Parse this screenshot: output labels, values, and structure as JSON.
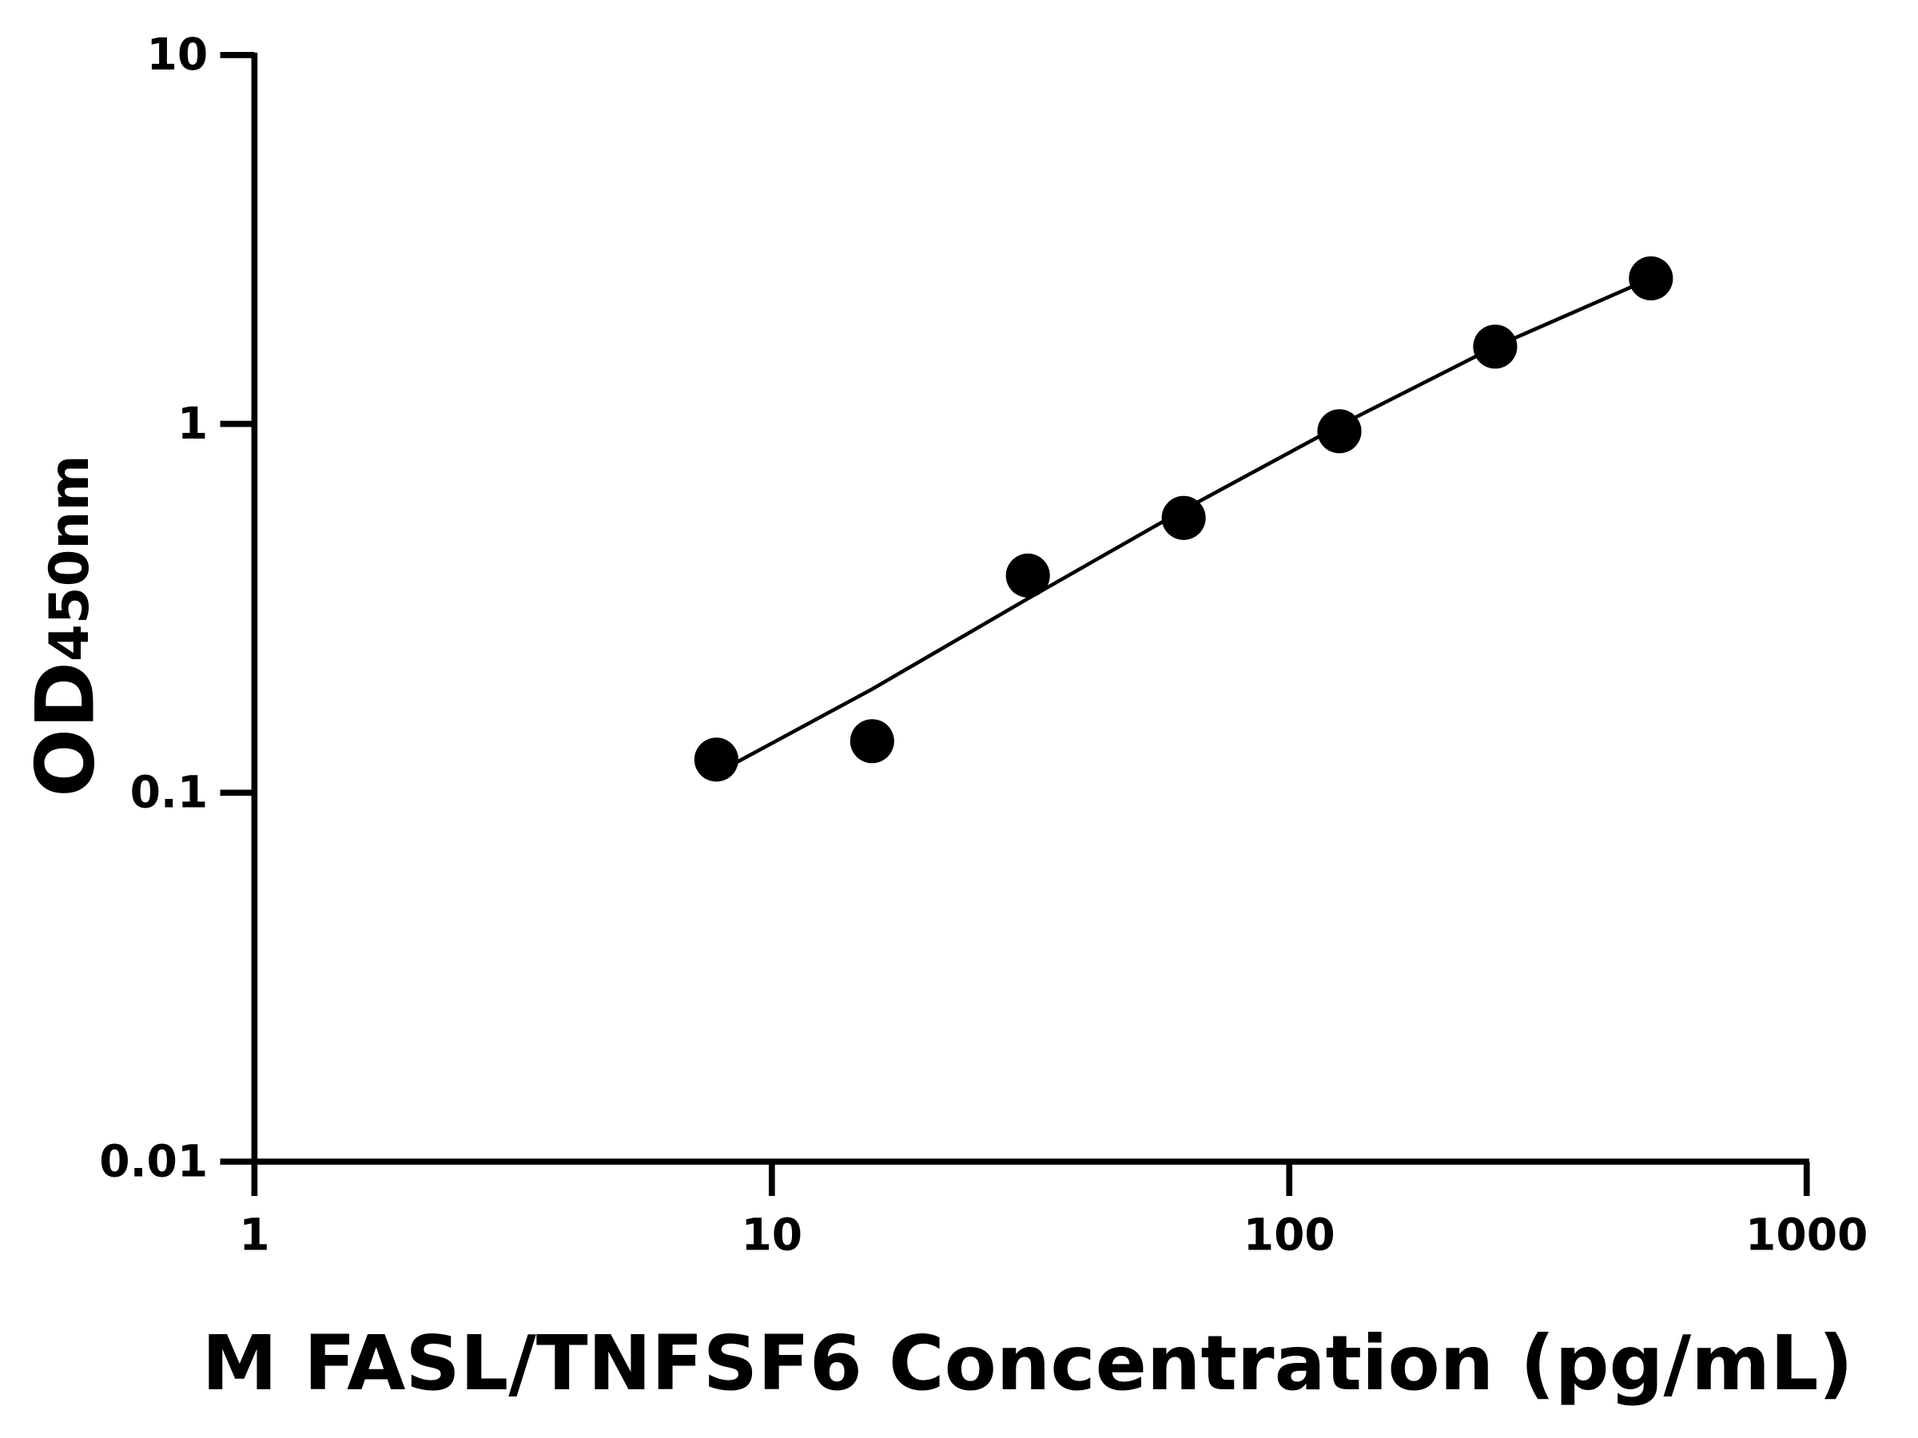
{
  "chart_data": {
    "type": "scatter",
    "xlabel": "M FASL/TNFSF6 Concentration (pg/mL)",
    "ylabel": "OD",
    "ylabel_subscript": "450nm",
    "xscale": "log",
    "yscale": "log",
    "xlim": [
      1,
      1000
    ],
    "ylim": [
      0.01,
      10
    ],
    "xticks": [
      1,
      10,
      100,
      1000
    ],
    "yticks": [
      0.01,
      0.1,
      1,
      10
    ],
    "grid": false,
    "series": [
      {
        "mode": "markers",
        "color": "#000000",
        "x": [
          7.8125,
          15.625,
          31.25,
          62.5,
          125,
          250,
          500
        ],
        "values": [
          0.123,
          0.138,
          0.388,
          0.556,
          0.955,
          1.62,
          2.48
        ]
      },
      {
        "mode": "line",
        "color": "#000000",
        "x": [
          7.8125,
          15.625,
          31.25,
          62.5,
          125,
          250,
          500
        ],
        "values": [
          0.113,
          0.191,
          0.336,
          0.585,
          0.99,
          1.62,
          2.48
        ]
      }
    ]
  }
}
